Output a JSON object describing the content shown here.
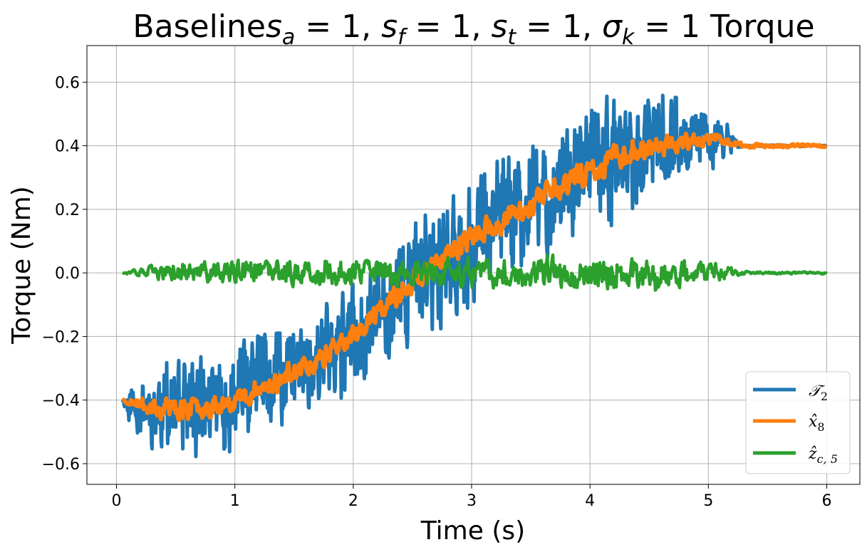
{
  "chart_data": {
    "type": "line",
    "title": "Baseline s_a = 1, s_f = 1, s_t = 1, σ_k = 1 Torque",
    "title_parts": {
      "prefix": "Baseline",
      "p1_sym": "s",
      "p1_sub": "a",
      "p1_eq": " = 1, ",
      "p2_sym": "s",
      "p2_sub": "f",
      "p2_eq": " = 1, ",
      "p3_sym": "s",
      "p3_sub": "t",
      "p3_eq": " = 1, ",
      "p4_sym": "σ",
      "p4_sub": "k",
      "p4_eq": " = 1 ",
      "suffix": "Torque"
    },
    "xlabel": "Time (s)",
    "ylabel": "Torque (Nm)",
    "xlim": [
      -0.25,
      6.28
    ],
    "ylim": [
      -0.665,
      0.715
    ],
    "x_ticks": [
      0,
      1,
      2,
      3,
      4,
      5,
      6
    ],
    "x_tick_labels": [
      "0",
      "1",
      "2",
      "3",
      "4",
      "5",
      "6"
    ],
    "y_ticks": [
      -0.6,
      -0.4,
      -0.2,
      0.0,
      0.2,
      0.4,
      0.6
    ],
    "y_tick_labels": [
      "−0.6",
      "−0.4",
      "−0.2",
      "0.0",
      "0.2",
      "0.4",
      "0.6"
    ],
    "grid": true,
    "legend_position": "bottom-right",
    "t_start": 0.05,
    "t_end": 6.0,
    "series": [
      {
        "name": "𝒯₂",
        "legend_sym": "𝒯",
        "legend_sub": "2",
        "color": "#1f77b4",
        "envelope": {
          "x": [
            0.05,
            0.1,
            0.3,
            0.5,
            0.9,
            1.2,
            1.5,
            1.8,
            2.0,
            2.2,
            2.4,
            2.6,
            2.8,
            3.0,
            3.3,
            3.6,
            3.9,
            4.2,
            4.5,
            4.8,
            5.0,
            5.1,
            5.2,
            5.25,
            5.3,
            6.0
          ],
          "center": [
            -0.4,
            -0.41,
            -0.42,
            -0.43,
            -0.41,
            -0.37,
            -0.31,
            -0.25,
            -0.2,
            -0.13,
            -0.06,
            0.0,
            0.06,
            0.11,
            0.17,
            0.24,
            0.3,
            0.36,
            0.39,
            0.41,
            0.42,
            0.42,
            0.41,
            0.4,
            0.4,
            0.4
          ],
          "amplitude": [
            0.0,
            0.05,
            0.11,
            0.13,
            0.14,
            0.14,
            0.14,
            0.13,
            0.14,
            0.14,
            0.15,
            0.16,
            0.18,
            0.18,
            0.17,
            0.16,
            0.16,
            0.18,
            0.14,
            0.11,
            0.09,
            0.06,
            0.03,
            0.008,
            0.002,
            0.002
          ]
        }
      },
      {
        "name": "x̂₈",
        "legend_sym": "x̂",
        "legend_sub": "8",
        "color": "#ff7f0e",
        "envelope": {
          "x": [
            0.05,
            0.3,
            0.6,
            0.9,
            1.2,
            1.5,
            1.8,
            2.0,
            2.2,
            2.4,
            2.6,
            2.8,
            3.0,
            3.3,
            3.6,
            3.9,
            4.2,
            4.5,
            4.8,
            5.0,
            5.2,
            5.3,
            6.0
          ],
          "center": [
            -0.4,
            -0.42,
            -0.43,
            -0.41,
            -0.37,
            -0.31,
            -0.25,
            -0.2,
            -0.13,
            -0.06,
            0.0,
            0.06,
            0.11,
            0.17,
            0.24,
            0.3,
            0.36,
            0.4,
            0.41,
            0.42,
            0.41,
            0.4,
            0.4
          ],
          "amplitude": [
            0.004,
            0.03,
            0.03,
            0.03,
            0.03,
            0.03,
            0.03,
            0.03,
            0.03,
            0.03,
            0.03,
            0.035,
            0.035,
            0.035,
            0.035,
            0.035,
            0.035,
            0.03,
            0.025,
            0.02,
            0.01,
            0.005,
            0.004
          ]
        }
      },
      {
        "name": "ẑ_c,5",
        "legend_sym": "ẑ",
        "legend_sub": "c, 5",
        "color": "#2ca02c",
        "envelope": {
          "x": [
            0.05,
            0.3,
            1.0,
            2.0,
            3.0,
            3.5,
            4.0,
            4.5,
            5.0,
            5.2,
            5.3,
            6.0
          ],
          "center": [
            0,
            0,
            0,
            0,
            0,
            0,
            0,
            0,
            0,
            0,
            0,
            0
          ],
          "amplitude": [
            0.0,
            0.02,
            0.035,
            0.035,
            0.04,
            0.045,
            0.045,
            0.045,
            0.03,
            0.015,
            0.004,
            0.003
          ]
        }
      }
    ]
  }
}
